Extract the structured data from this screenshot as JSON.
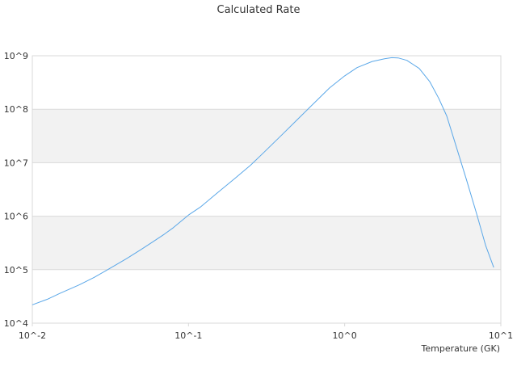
{
  "chart_data": {
    "type": "line",
    "title": "Calculated Rate",
    "xlabel": "Temperature (GK)",
    "ylabel": "",
    "x_scale": "log",
    "y_scale": "log",
    "xlim": [
      0.01,
      10
    ],
    "ylim": [
      10000,
      1000000000
    ],
    "x_ticks": [
      {
        "value": 0.01,
        "label": "10^-2"
      },
      {
        "value": 0.1,
        "label": "10^-1"
      },
      {
        "value": 1,
        "label": "10^0"
      },
      {
        "value": 10,
        "label": "10^1"
      }
    ],
    "y_ticks": [
      {
        "value": 10000,
        "label": "10^4"
      },
      {
        "value": 100000,
        "label": "10^5"
      },
      {
        "value": 1000000,
        "label": "10^6"
      },
      {
        "value": 10000000,
        "label": "10^7"
      },
      {
        "value": 100000000,
        "label": "10^8"
      },
      {
        "value": 1000000000,
        "label": "10^9"
      }
    ],
    "alternating_bands": true,
    "band_color": "#f2f2f2",
    "grid": true,
    "line_color": "#5aa7e8",
    "series": [
      {
        "x": [
          0.01,
          0.0125,
          0.015,
          0.02,
          0.025,
          0.03,
          0.04,
          0.05,
          0.06,
          0.07,
          0.08,
          0.1,
          0.12,
          0.15,
          0.2,
          0.25,
          0.3,
          0.4,
          0.5,
          0.6,
          0.7,
          0.8,
          1.0,
          1.2,
          1.5,
          1.8,
          2.0,
          2.2,
          2.5,
          3.0,
          3.5,
          4.0,
          4.5,
          5.0,
          6.0,
          7.0,
          8.0,
          9.0
        ],
        "y": [
          22000,
          28000,
          36000,
          52000,
          72000,
          98000,
          160000,
          240000,
          340000,
          460000,
          610000,
          1050000,
          1500000,
          2600000,
          5200000,
          9000000,
          15000000,
          34000000,
          65000000,
          110000000,
          170000000,
          250000000,
          420000000,
          600000000,
          780000000,
          880000000,
          920000000,
          910000000,
          820000000,
          580000000,
          330000000,
          160000000,
          75000000,
          28000000,
          5000000,
          1100000,
          280000,
          110000
        ]
      }
    ]
  }
}
